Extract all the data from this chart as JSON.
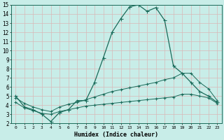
{
  "xlabel": "Humidex (Indice chaleur)",
  "xlim": [
    -0.5,
    23.5
  ],
  "ylim": [
    2,
    15
  ],
  "xticks": [
    0,
    1,
    2,
    3,
    4,
    5,
    6,
    7,
    8,
    9,
    10,
    11,
    12,
    13,
    14,
    15,
    16,
    17,
    18,
    19,
    20,
    21,
    22,
    23
  ],
  "yticks": [
    2,
    3,
    4,
    5,
    6,
    7,
    8,
    9,
    10,
    11,
    12,
    13,
    14,
    15
  ],
  "background_color": "#c8ede8",
  "grid_color": "#d8b8b8",
  "line_color": "#1a6b5a",
  "line1_x": [
    0,
    1,
    2,
    3,
    4,
    5,
    6,
    7,
    8,
    9,
    10,
    11,
    12,
    13,
    14,
    15,
    16,
    17,
    18,
    19,
    20,
    21,
    22,
    23
  ],
  "line1_y": [
    5.0,
    3.8,
    3.5,
    3.0,
    2.2,
    3.2,
    3.5,
    4.5,
    4.5,
    6.5,
    9.2,
    12.0,
    13.5,
    14.8,
    15.0,
    14.3,
    14.7,
    13.3,
    8.3,
    7.5,
    6.5,
    5.5,
    5.0,
    4.3
  ],
  "line2_x": [
    0,
    1,
    2,
    3,
    4,
    5,
    6,
    7,
    8,
    9,
    10,
    11,
    12,
    13,
    14,
    15,
    16,
    17,
    18,
    19,
    20,
    21,
    22,
    23
  ],
  "line2_y": [
    4.8,
    4.2,
    3.8,
    3.5,
    3.3,
    3.8,
    4.1,
    4.3,
    4.6,
    4.9,
    5.2,
    5.5,
    5.7,
    5.9,
    6.1,
    6.3,
    6.5,
    6.8,
    7.0,
    7.5,
    7.5,
    6.5,
    5.8,
    4.5
  ],
  "line3_x": [
    0,
    1,
    2,
    3,
    4,
    5,
    6,
    7,
    8,
    9,
    10,
    11,
    12,
    13,
    14,
    15,
    16,
    17,
    18,
    19,
    20,
    21,
    22,
    23
  ],
  "line3_y": [
    4.3,
    3.7,
    3.4,
    3.1,
    3.0,
    3.3,
    3.5,
    3.7,
    3.9,
    4.0,
    4.1,
    4.2,
    4.3,
    4.4,
    4.5,
    4.6,
    4.7,
    4.8,
    4.9,
    5.2,
    5.2,
    5.0,
    4.8,
    4.2
  ]
}
